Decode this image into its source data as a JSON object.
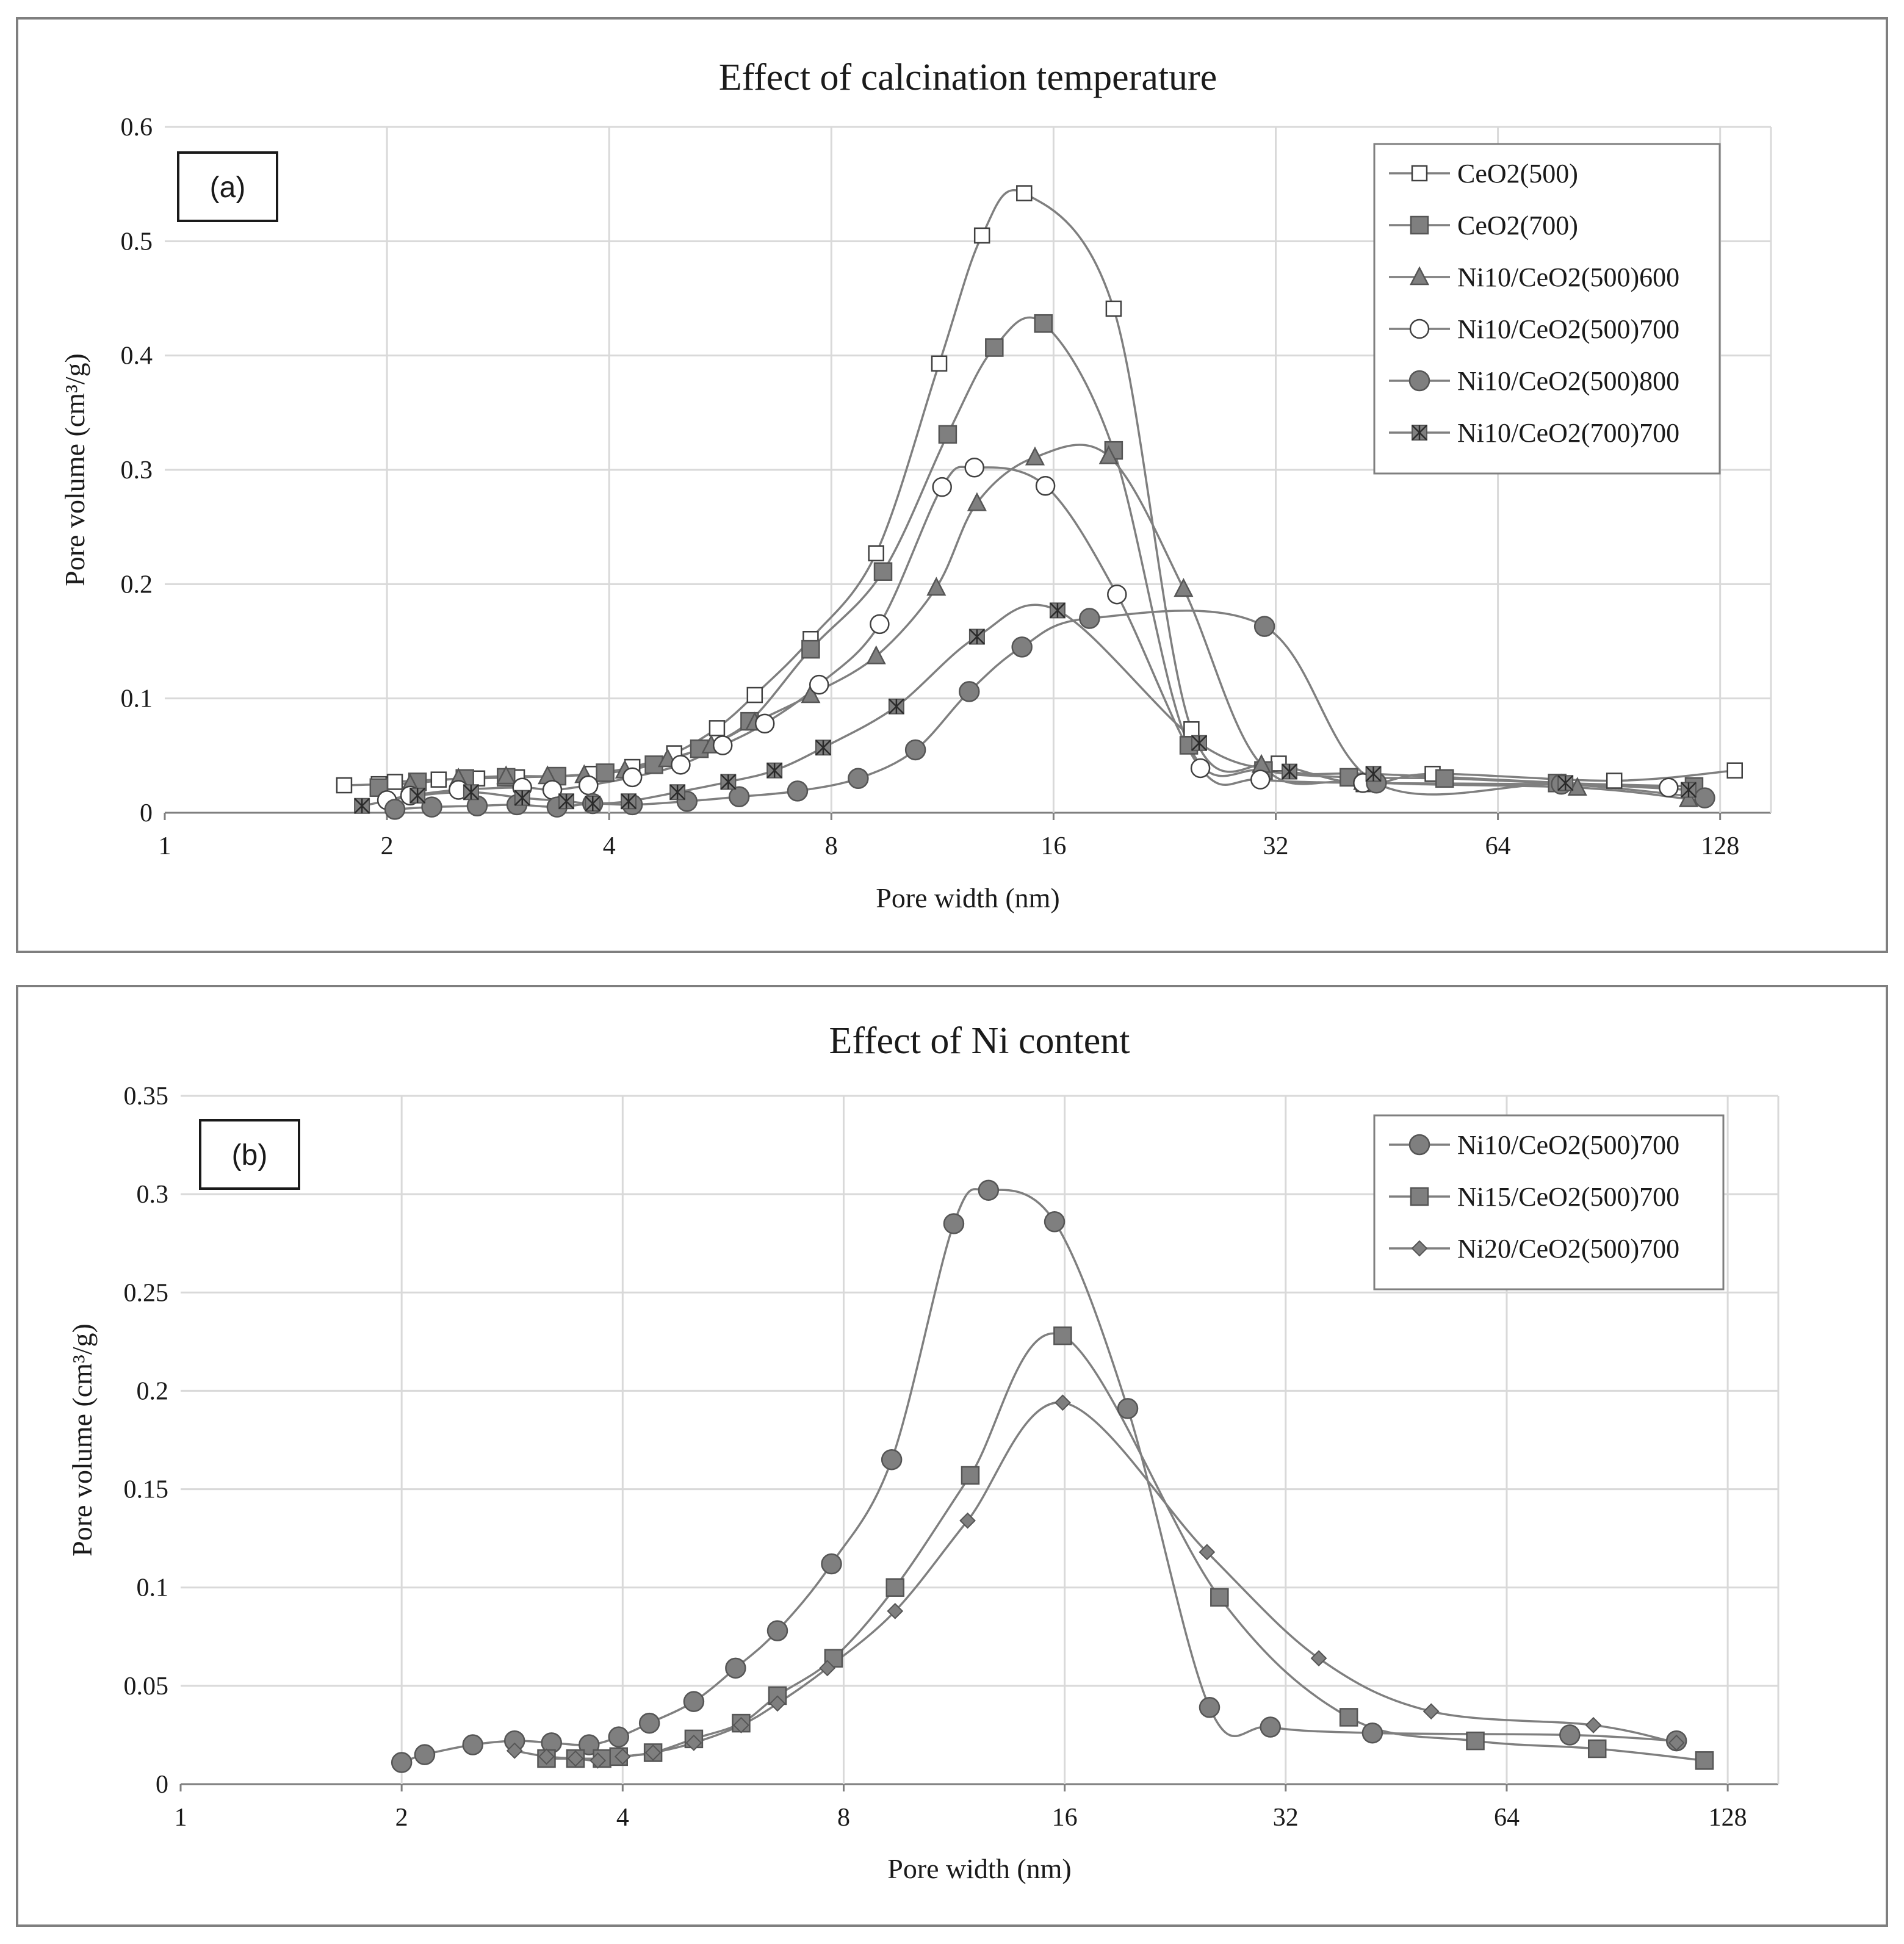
{
  "chart_data": [
    {
      "type": "line",
      "panel": "(a)",
      "title": "Effect of calcination  temperature",
      "xlabel": "Pore width (nm)",
      "ylabel": "Pore volume (cm³/g)",
      "xscale": "log2",
      "xlim": [
        1,
        150
      ],
      "ylim": [
        0,
        0.6
      ],
      "xticks": [
        1,
        2,
        4,
        8,
        16,
        32,
        64,
        128
      ],
      "xtick_labels": [
        "1",
        "2",
        "4",
        "8",
        "16",
        "32",
        "64",
        "128"
      ],
      "yticks": [
        0,
        0.1,
        0.2,
        0.3,
        0.4,
        0.5,
        0.6
      ],
      "ytick_labels": [
        "0",
        "0.1",
        "0.2",
        "0.3",
        "0.4",
        "0.5",
        "0.6"
      ],
      "grid": true,
      "legend_position": "top-right",
      "series": [
        {
          "name": "CeO2(500)",
          "marker": "square-open",
          "x": [
            1.75,
            1.95,
            2.05,
            2.35,
            2.65,
            3.0,
            3.4,
            3.8,
            4.3,
            4.9,
            5.6,
            6.3,
            7.5,
            9.2,
            11.2,
            12.8,
            14.6,
            19.3,
            24.6,
            32.3,
            42.1,
            52.2,
            92.0,
            134.0
          ],
          "y": [
            0.024,
            0.025,
            0.027,
            0.029,
            0.03,
            0.031,
            0.032,
            0.034,
            0.04,
            0.052,
            0.074,
            0.103,
            0.152,
            0.227,
            0.393,
            0.505,
            0.542,
            0.441,
            0.073,
            0.043,
            0.025,
            0.034,
            0.028,
            0.037
          ]
        },
        {
          "name": "CeO2(700)",
          "marker": "square-filled",
          "x": [
            1.95,
            2.2,
            2.55,
            2.9,
            3.4,
            3.95,
            4.6,
            5.3,
            6.2,
            7.5,
            9.4,
            11.5,
            13.3,
            15.5,
            19.3,
            24.4,
            30.8,
            40.2,
            54.2,
            77.0,
            118.0
          ],
          "y": [
            0.022,
            0.027,
            0.03,
            0.031,
            0.032,
            0.035,
            0.042,
            0.056,
            0.08,
            0.143,
            0.211,
            0.331,
            0.407,
            0.428,
            0.317,
            0.059,
            0.037,
            0.031,
            0.03,
            0.026,
            0.023
          ]
        },
        {
          "name": "Ni10/CeO2(500)600",
          "marker": "triangle",
          "x": [
            2.15,
            2.5,
            2.9,
            3.3,
            3.7,
            4.2,
            4.8,
            5.5,
            6.3,
            7.5,
            9.2,
            11.1,
            12.6,
            15.1,
            19.0,
            24.0,
            30.6,
            42.0,
            82.0,
            116.0
          ],
          "y": [
            0.025,
            0.03,
            0.032,
            0.032,
            0.033,
            0.037,
            0.047,
            0.059,
            0.079,
            0.103,
            0.137,
            0.197,
            0.271,
            0.311,
            0.312,
            0.196,
            0.042,
            0.027,
            0.022,
            0.012
          ]
        },
        {
          "name": "Ni10/CeO2(500)700",
          "marker": "circle-open",
          "x": [
            2.0,
            2.15,
            2.5,
            3.05,
            3.35,
            3.75,
            4.3,
            5.0,
            5.7,
            6.5,
            7.7,
            9.3,
            11.3,
            12.5,
            15.6,
            19.5,
            25.3,
            30.5,
            42.0,
            78.0,
            109.0
          ],
          "y": [
            0.011,
            0.015,
            0.02,
            0.022,
            0.02,
            0.024,
            0.031,
            0.042,
            0.059,
            0.078,
            0.112,
            0.165,
            0.285,
            0.302,
            0.286,
            0.191,
            0.039,
            0.029,
            0.026,
            0.025,
            0.022
          ]
        },
        {
          "name": "Ni10/CeO2(500)800",
          "marker": "circle-filled",
          "x": [
            2.05,
            2.3,
            2.65,
            3.0,
            3.4,
            3.8,
            4.3,
            5.1,
            6.0,
            7.2,
            8.7,
            10.4,
            12.3,
            14.5,
            17.9,
            30.9,
            43.8,
            78.0,
            122.0
          ],
          "y": [
            0.003,
            0.005,
            0.006,
            0.007,
            0.005,
            0.008,
            0.007,
            0.01,
            0.014,
            0.019,
            0.03,
            0.055,
            0.106,
            0.145,
            0.17,
            0.163,
            0.026,
            0.025,
            0.013
          ]
        },
        {
          "name": "Ni10/CeO2(700)700",
          "marker": "asterisk-square",
          "x": [
            1.85,
            2.2,
            2.6,
            3.05,
            3.5,
            3.8,
            4.25,
            4.95,
            5.8,
            6.7,
            7.8,
            9.8,
            12.6,
            16.2,
            25.2,
            33.4,
            43.4,
            79.0,
            116.0
          ],
          "y": [
            0.006,
            0.015,
            0.018,
            0.013,
            0.01,
            0.008,
            0.01,
            0.018,
            0.027,
            0.037,
            0.057,
            0.093,
            0.154,
            0.177,
            0.061,
            0.036,
            0.034,
            0.026,
            0.02
          ]
        }
      ]
    },
    {
      "type": "line",
      "panel": "(b)",
      "title": "Effect of Ni content",
      "xlabel": "Pore width (nm)",
      "ylabel": "Pore volume (cm³/g)",
      "xscale": "log2",
      "xlim": [
        1,
        150
      ],
      "ylim": [
        0,
        0.35
      ],
      "xticks": [
        1,
        2,
        4,
        8,
        16,
        32,
        64,
        128
      ],
      "xtick_labels": [
        "1",
        "2",
        "4",
        "8",
        "16",
        "32",
        "64",
        "128"
      ],
      "yticks": [
        0,
        0.05,
        0.1,
        0.15,
        0.2,
        0.25,
        0.3,
        0.35
      ],
      "ytick_labels": [
        "0",
        "0.05",
        "0.1",
        "0.15",
        "0.2",
        "0.25",
        "0.3",
        "0.35"
      ],
      "grid": true,
      "legend_position": "top-right",
      "series": [
        {
          "name": "Ni10/CeO2(500)700",
          "marker": "circle-filled",
          "x": [
            2.0,
            2.15,
            2.5,
            2.85,
            3.2,
            3.6,
            3.95,
            4.35,
            5.0,
            5.7,
            6.5,
            7.7,
            9.3,
            11.3,
            12.6,
            15.5,
            19.5,
            25.2,
            30.5,
            42.0,
            78.0,
            109.0
          ],
          "y": [
            0.011,
            0.015,
            0.02,
            0.022,
            0.021,
            0.02,
            0.024,
            0.031,
            0.042,
            0.059,
            0.078,
            0.112,
            0.165,
            0.285,
            0.302,
            0.286,
            0.191,
            0.039,
            0.029,
            0.026,
            0.025,
            0.022
          ]
        },
        {
          "name": "Ni15/CeO2(500)700",
          "marker": "square-filled",
          "x": [
            3.15,
            3.45,
            3.75,
            3.95,
            4.4,
            5.0,
            5.8,
            6.5,
            7.75,
            9.4,
            11.9,
            15.9,
            26.0,
            39.0,
            58.0,
            85.0,
            119.0
          ],
          "y": [
            0.013,
            0.013,
            0.013,
            0.014,
            0.016,
            0.023,
            0.031,
            0.045,
            0.064,
            0.1,
            0.157,
            0.228,
            0.095,
            0.034,
            0.022,
            0.018,
            0.012
          ]
        },
        {
          "name": "Ni20/CeO2(500)700",
          "marker": "diamond",
          "x": [
            2.85,
            3.15,
            3.45,
            3.7,
            4.0,
            4.4,
            5.0,
            5.8,
            6.5,
            7.6,
            9.4,
            11.8,
            15.9,
            25.0,
            35.5,
            50.5,
            84.0,
            109.0
          ],
          "y": [
            0.017,
            0.014,
            0.013,
            0.012,
            0.014,
            0.016,
            0.021,
            0.03,
            0.041,
            0.059,
            0.088,
            0.134,
            0.194,
            0.118,
            0.064,
            0.037,
            0.03,
            0.021
          ]
        }
      ]
    }
  ]
}
